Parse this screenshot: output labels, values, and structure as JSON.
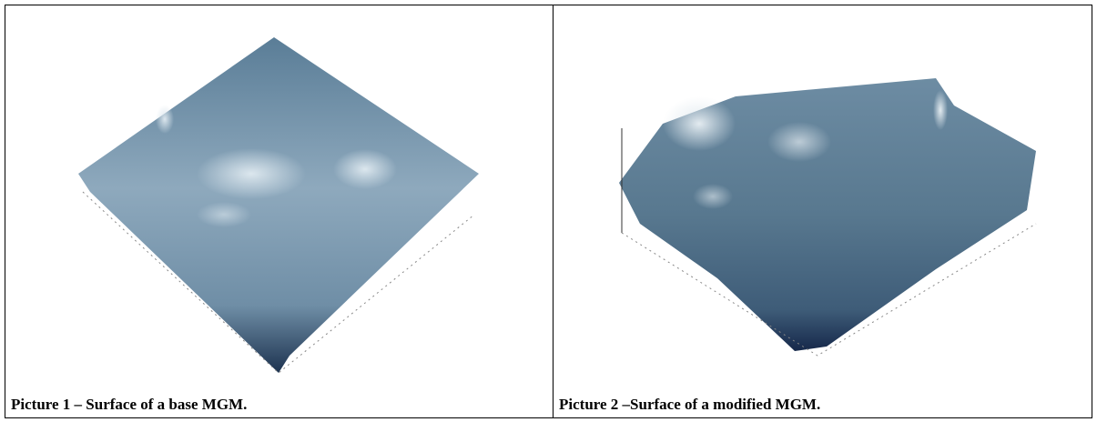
{
  "figures": [
    {
      "caption": "Picture 1 – Surface of a base MGM."
    },
    {
      "caption": "Picture 2 –Surface of a modified MGM."
    }
  ]
}
